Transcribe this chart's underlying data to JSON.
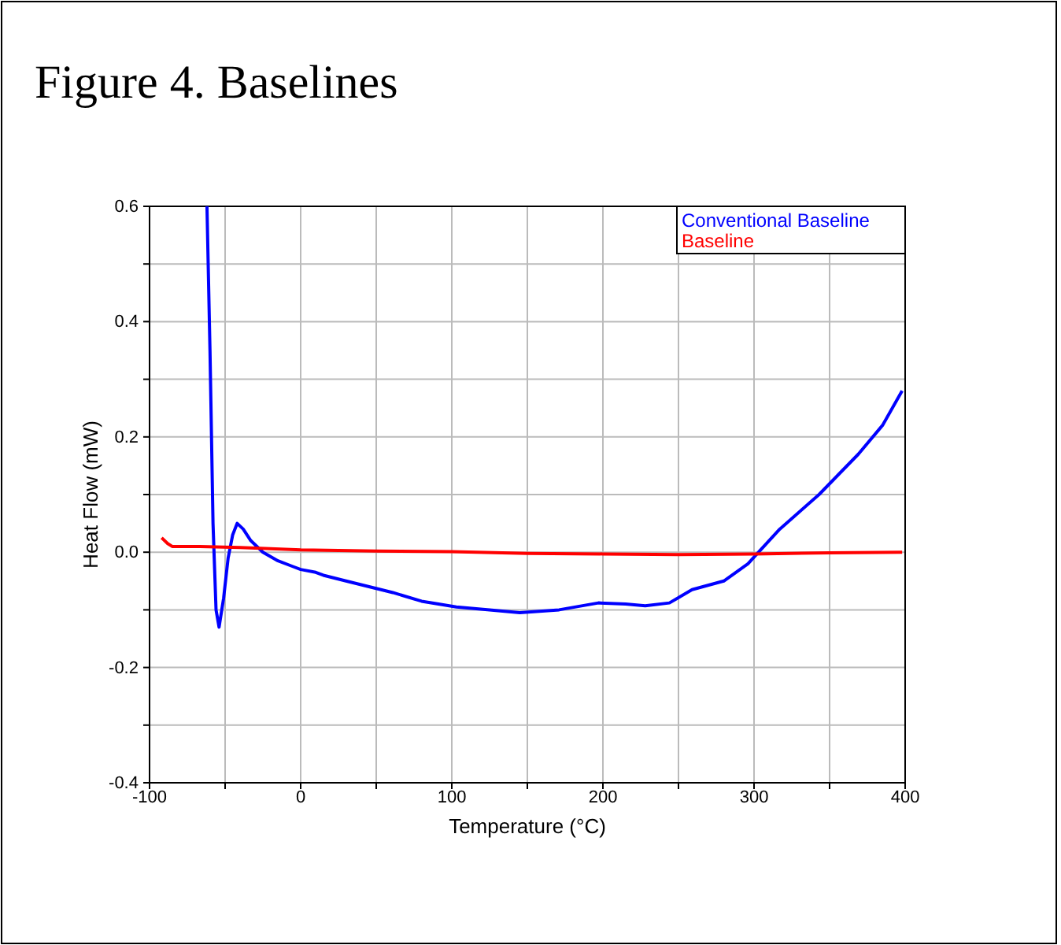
{
  "chart_data": {
    "type": "line",
    "title": "Figure 4.  Baselines",
    "xlabel": "Temperature (°C)",
    "ylabel": "Heat Flow (mW)",
    "xlim": [
      -100,
      400
    ],
    "ylim": [
      -0.4,
      0.6
    ],
    "xticks": [
      -100,
      {
        "value": -50,
        "label": null
      },
      0,
      {
        "value": 50,
        "label": null
      },
      100,
      {
        "value": 150,
        "label": null
      },
      200,
      {
        "value": 250,
        "label": null
      },
      300,
      {
        "value": 350,
        "label": null
      },
      400
    ],
    "yticks": [
      -0.4,
      {
        "value": -0.3,
        "label": null
      },
      {
        "value": -0.2,
        "label": "-0.2"
      },
      {
        "value": -0.1,
        "label": null
      },
      {
        "value": 0,
        "label": "0.0"
      },
      {
        "value": 0.1,
        "label": null
      },
      0.2,
      {
        "value": 0.3,
        "label": null
      },
      0.4,
      {
        "value": 0.5,
        "label": null
      },
      0.6
    ],
    "grid": true,
    "legend": "top right",
    "series": [
      {
        "name": "Conventional Baseline",
        "color": "#0000ff",
        "x": [
          -62,
          -60,
          -58,
          -56,
          -54,
          -51,
          -48,
          -45,
          -42,
          -38,
          -33,
          -25,
          -15,
          -5,
          0,
          10,
          15,
          30,
          61,
          80,
          103,
          125,
          145,
          171,
          197,
          215,
          228,
          244,
          259,
          280,
          296,
          303,
          317,
          343,
          369,
          385,
          398
        ],
        "values": [
          0.6,
          0.35,
          0.05,
          -0.1,
          -0.13,
          -0.08,
          -0.01,
          0.03,
          0.05,
          0.04,
          0.02,
          0.0,
          -0.015,
          -0.025,
          -0.03,
          -0.035,
          -0.04,
          -0.05,
          -0.07,
          -0.085,
          -0.095,
          -0.1,
          -0.105,
          -0.1,
          -0.088,
          -0.09,
          -0.093,
          -0.088,
          -0.065,
          -0.05,
          -0.02,
          0.0,
          0.04,
          0.1,
          0.17,
          0.22,
          0.28
        ]
      },
      {
        "name": "Baseline",
        "color": "#ff0000",
        "x": [
          -92,
          -88,
          -85,
          -70,
          -40,
          0,
          50,
          100,
          150,
          200,
          250,
          300,
          350,
          398
        ],
        "values": [
          0.025,
          0.015,
          0.01,
          0.01,
          0.008,
          0.004,
          0.002,
          0.001,
          -0.002,
          -0.003,
          -0.004,
          -0.003,
          -0.001,
          0.0
        ]
      }
    ]
  }
}
